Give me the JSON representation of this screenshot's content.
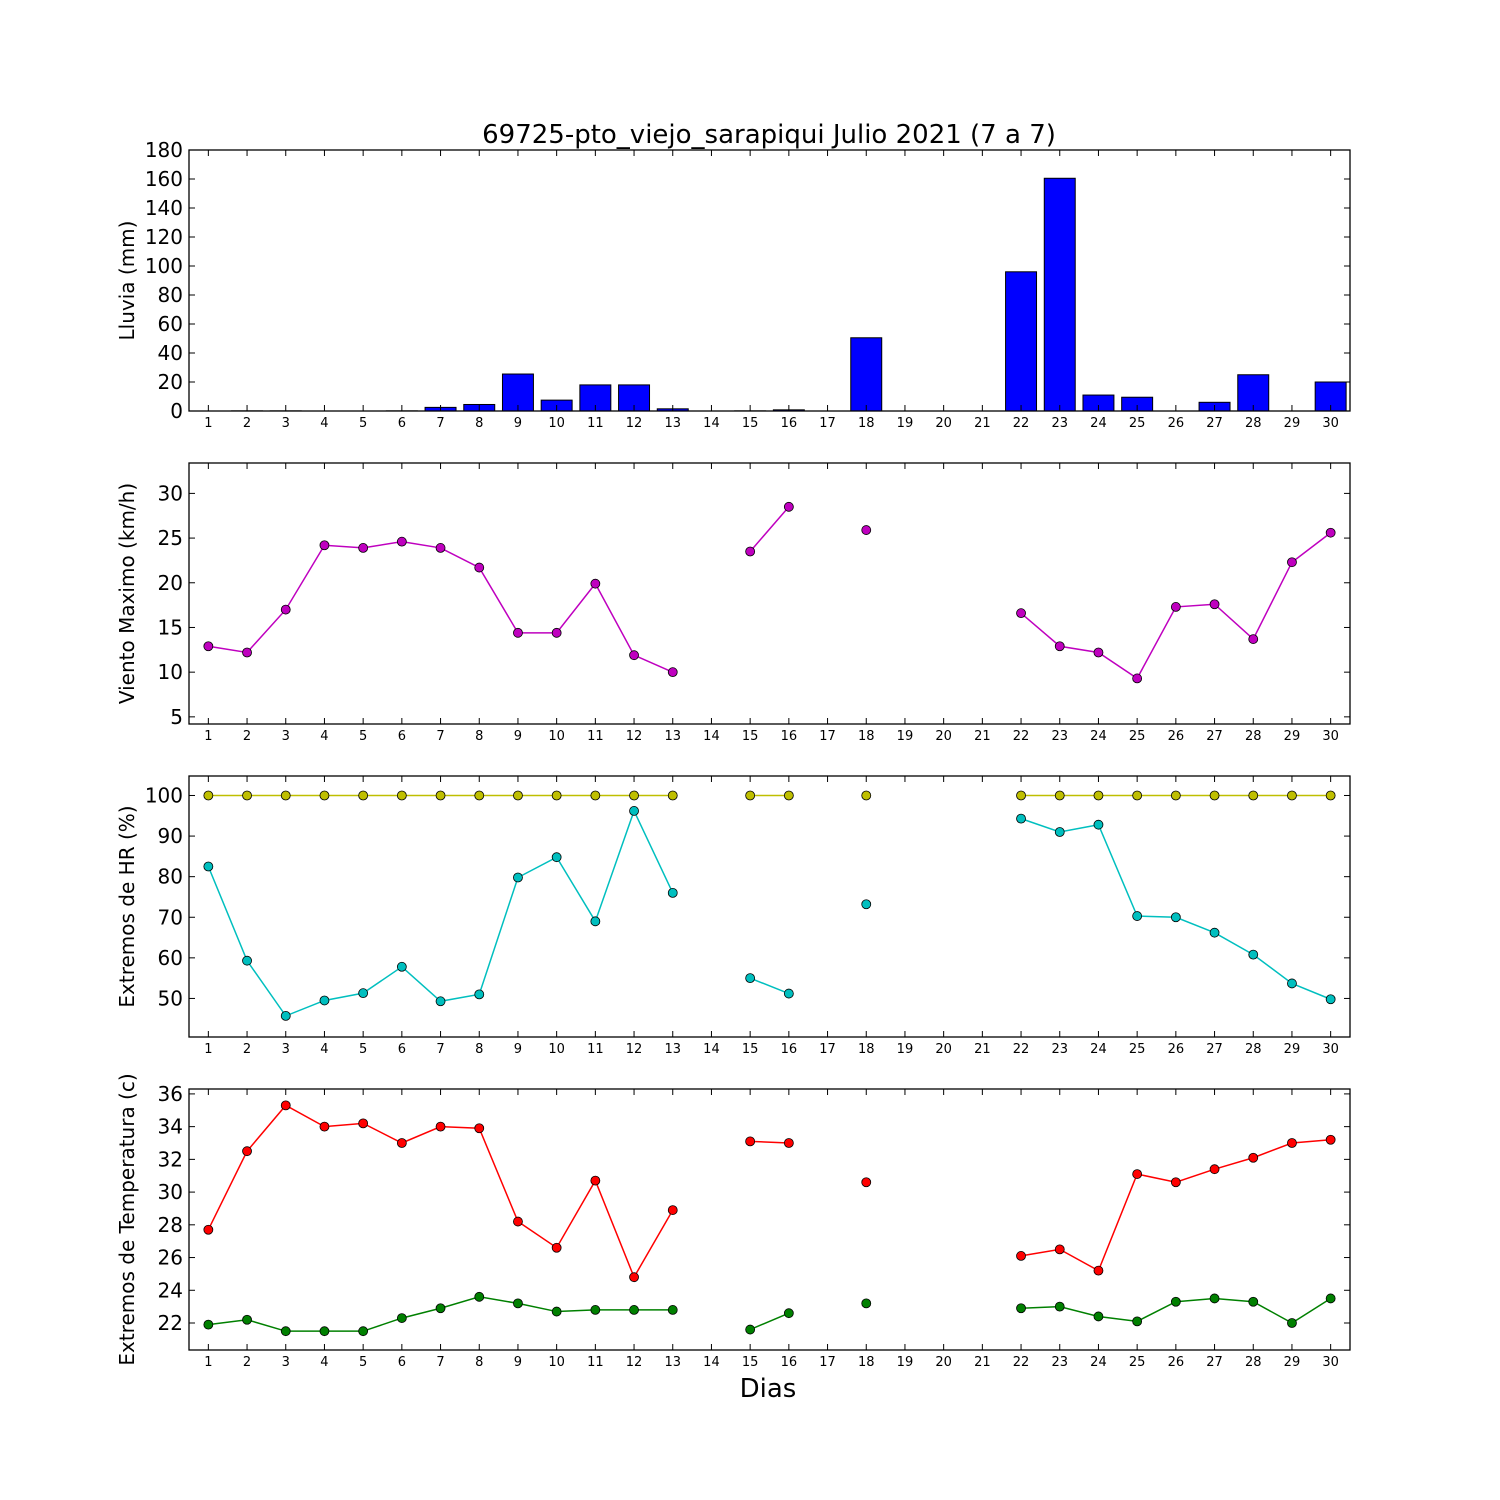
{
  "figure": {
    "title": "69725-pto_viejo_sarapiqui Julio 2021  (7 a 7)",
    "xlabel": "Dias"
  },
  "chart_data": [
    {
      "type": "bar",
      "ylabel": "Lluvia (mm)",
      "ylim": [
        0,
        180
      ],
      "yticks": [
        0,
        20,
        40,
        60,
        80,
        100,
        120,
        140,
        160,
        180
      ],
      "categories": [
        "1",
        "2",
        "3",
        "4",
        "5",
        "6",
        "7",
        "8",
        "9",
        "10",
        "11",
        "12",
        "13",
        "14",
        "15",
        "16",
        "17",
        "18",
        "19",
        "20",
        "21",
        "22",
        "23",
        "24",
        "25",
        "26",
        "27",
        "28",
        "29",
        "30"
      ],
      "x": [
        1,
        2,
        3,
        4,
        5,
        6,
        7,
        8,
        9,
        10,
        11,
        12,
        13,
        14,
        15,
        16,
        17,
        18,
        19,
        20,
        21,
        22,
        23,
        24,
        25,
        26,
        27,
        28,
        29,
        30
      ],
      "series": [
        {
          "color": "#0000ff",
          "values": [
            0,
            0.1,
            0.1,
            0,
            0,
            0.1,
            2.5,
            4.5,
            25.5,
            7.5,
            18,
            18,
            1.5,
            0,
            0.1,
            0.8,
            0,
            50.5,
            0,
            0,
            0,
            96,
            160.5,
            11,
            9.5,
            0,
            6,
            25,
            0,
            20
          ]
        }
      ],
      "grid": false
    },
    {
      "type": "line",
      "ylabel": "Viento Maximo (km/h)",
      "ylim": [
        4.2,
        33.4
      ],
      "yticks": [
        5,
        10,
        15,
        20,
        25,
        30
      ],
      "categories": [
        "1",
        "2",
        "3",
        "4",
        "5",
        "6",
        "7",
        "8",
        "9",
        "10",
        "11",
        "12",
        "13",
        "14",
        "15",
        "16",
        "17",
        "18",
        "19",
        "20",
        "21",
        "22",
        "23",
        "24",
        "25",
        "26",
        "27",
        "28",
        "29",
        "30"
      ],
      "x": [
        1,
        2,
        3,
        4,
        5,
        6,
        7,
        8,
        9,
        10,
        11,
        12,
        13,
        14,
        15,
        16,
        17,
        18,
        19,
        20,
        21,
        22,
        23,
        24,
        25,
        26,
        27,
        28,
        29,
        30
      ],
      "series": [
        {
          "color": "#bf00bf",
          "values": [
            12.9,
            12.2,
            17.0,
            24.2,
            23.9,
            24.6,
            23.9,
            21.7,
            14.4,
            14.4,
            19.9,
            11.9,
            10.0,
            null,
            23.5,
            28.5,
            null,
            25.9,
            null,
            null,
            null,
            16.6,
            12.9,
            12.2,
            9.3,
            17.3,
            17.6,
            13.7,
            22.3,
            25.6
          ]
        }
      ],
      "grid": false
    },
    {
      "type": "line",
      "ylabel": "Extremos de HR (%)",
      "ylim": [
        40.5,
        104.8
      ],
      "yticks": [
        50,
        60,
        70,
        80,
        90,
        100
      ],
      "categories": [
        "1",
        "2",
        "3",
        "4",
        "5",
        "6",
        "7",
        "8",
        "9",
        "10",
        "11",
        "12",
        "13",
        "14",
        "15",
        "16",
        "17",
        "18",
        "19",
        "20",
        "21",
        "22",
        "23",
        "24",
        "25",
        "26",
        "27",
        "28",
        "29",
        "30"
      ],
      "x": [
        1,
        2,
        3,
        4,
        5,
        6,
        7,
        8,
        9,
        10,
        11,
        12,
        13,
        14,
        15,
        16,
        17,
        18,
        19,
        20,
        21,
        22,
        23,
        24,
        25,
        26,
        27,
        28,
        29,
        30
      ],
      "series": [
        {
          "color": "#bfbf00",
          "values": [
            100,
            100,
            100,
            100,
            100,
            100,
            100,
            100,
            100,
            100,
            100,
            100,
            100,
            null,
            100,
            100,
            null,
            100,
            null,
            null,
            null,
            100,
            100,
            100,
            100,
            100,
            100,
            100,
            100,
            100
          ]
        },
        {
          "color": "#00bfbf",
          "values": [
            82.5,
            59.3,
            45.7,
            49.5,
            51.3,
            57.8,
            49.3,
            51.0,
            79.8,
            84.8,
            69.0,
            96.2,
            76.0,
            null,
            55.0,
            51.2,
            null,
            73.2,
            null,
            null,
            null,
            94.3,
            91.0,
            92.8,
            70.3,
            70.0,
            66.2,
            60.8,
            53.7,
            49.8
          ]
        }
      ],
      "grid": false
    },
    {
      "type": "line",
      "ylabel": "Extremos de Temperatura (c)",
      "ylim": [
        20.35,
        36.3
      ],
      "yticks": [
        22,
        24,
        26,
        28,
        30,
        32,
        34,
        36
      ],
      "categories": [
        "1",
        "2",
        "3",
        "4",
        "5",
        "6",
        "7",
        "8",
        "9",
        "10",
        "11",
        "12",
        "13",
        "14",
        "15",
        "16",
        "17",
        "18",
        "19",
        "20",
        "21",
        "22",
        "23",
        "24",
        "25",
        "26",
        "27",
        "28",
        "29",
        "30"
      ],
      "x": [
        1,
        2,
        3,
        4,
        5,
        6,
        7,
        8,
        9,
        10,
        11,
        12,
        13,
        14,
        15,
        16,
        17,
        18,
        19,
        20,
        21,
        22,
        23,
        24,
        25,
        26,
        27,
        28,
        29,
        30
      ],
      "series": [
        {
          "color": "#ff0000",
          "values": [
            27.7,
            32.5,
            35.3,
            34.0,
            34.2,
            33.0,
            34.0,
            33.9,
            28.2,
            26.6,
            30.7,
            24.8,
            28.9,
            null,
            33.1,
            33.0,
            null,
            30.6,
            null,
            null,
            null,
            26.1,
            26.5,
            25.2,
            31.1,
            30.6,
            31.4,
            32.1,
            33.0,
            33.2
          ]
        },
        {
          "color": "#008000",
          "values": [
            21.9,
            22.2,
            21.5,
            21.5,
            21.5,
            22.3,
            22.9,
            23.6,
            23.2,
            22.7,
            22.8,
            22.8,
            22.8,
            null,
            21.6,
            22.6,
            null,
            23.2,
            null,
            null,
            null,
            22.9,
            23.0,
            22.4,
            22.1,
            23.3,
            23.5,
            23.3,
            22.0,
            23.5
          ]
        }
      ],
      "grid": false
    }
  ]
}
